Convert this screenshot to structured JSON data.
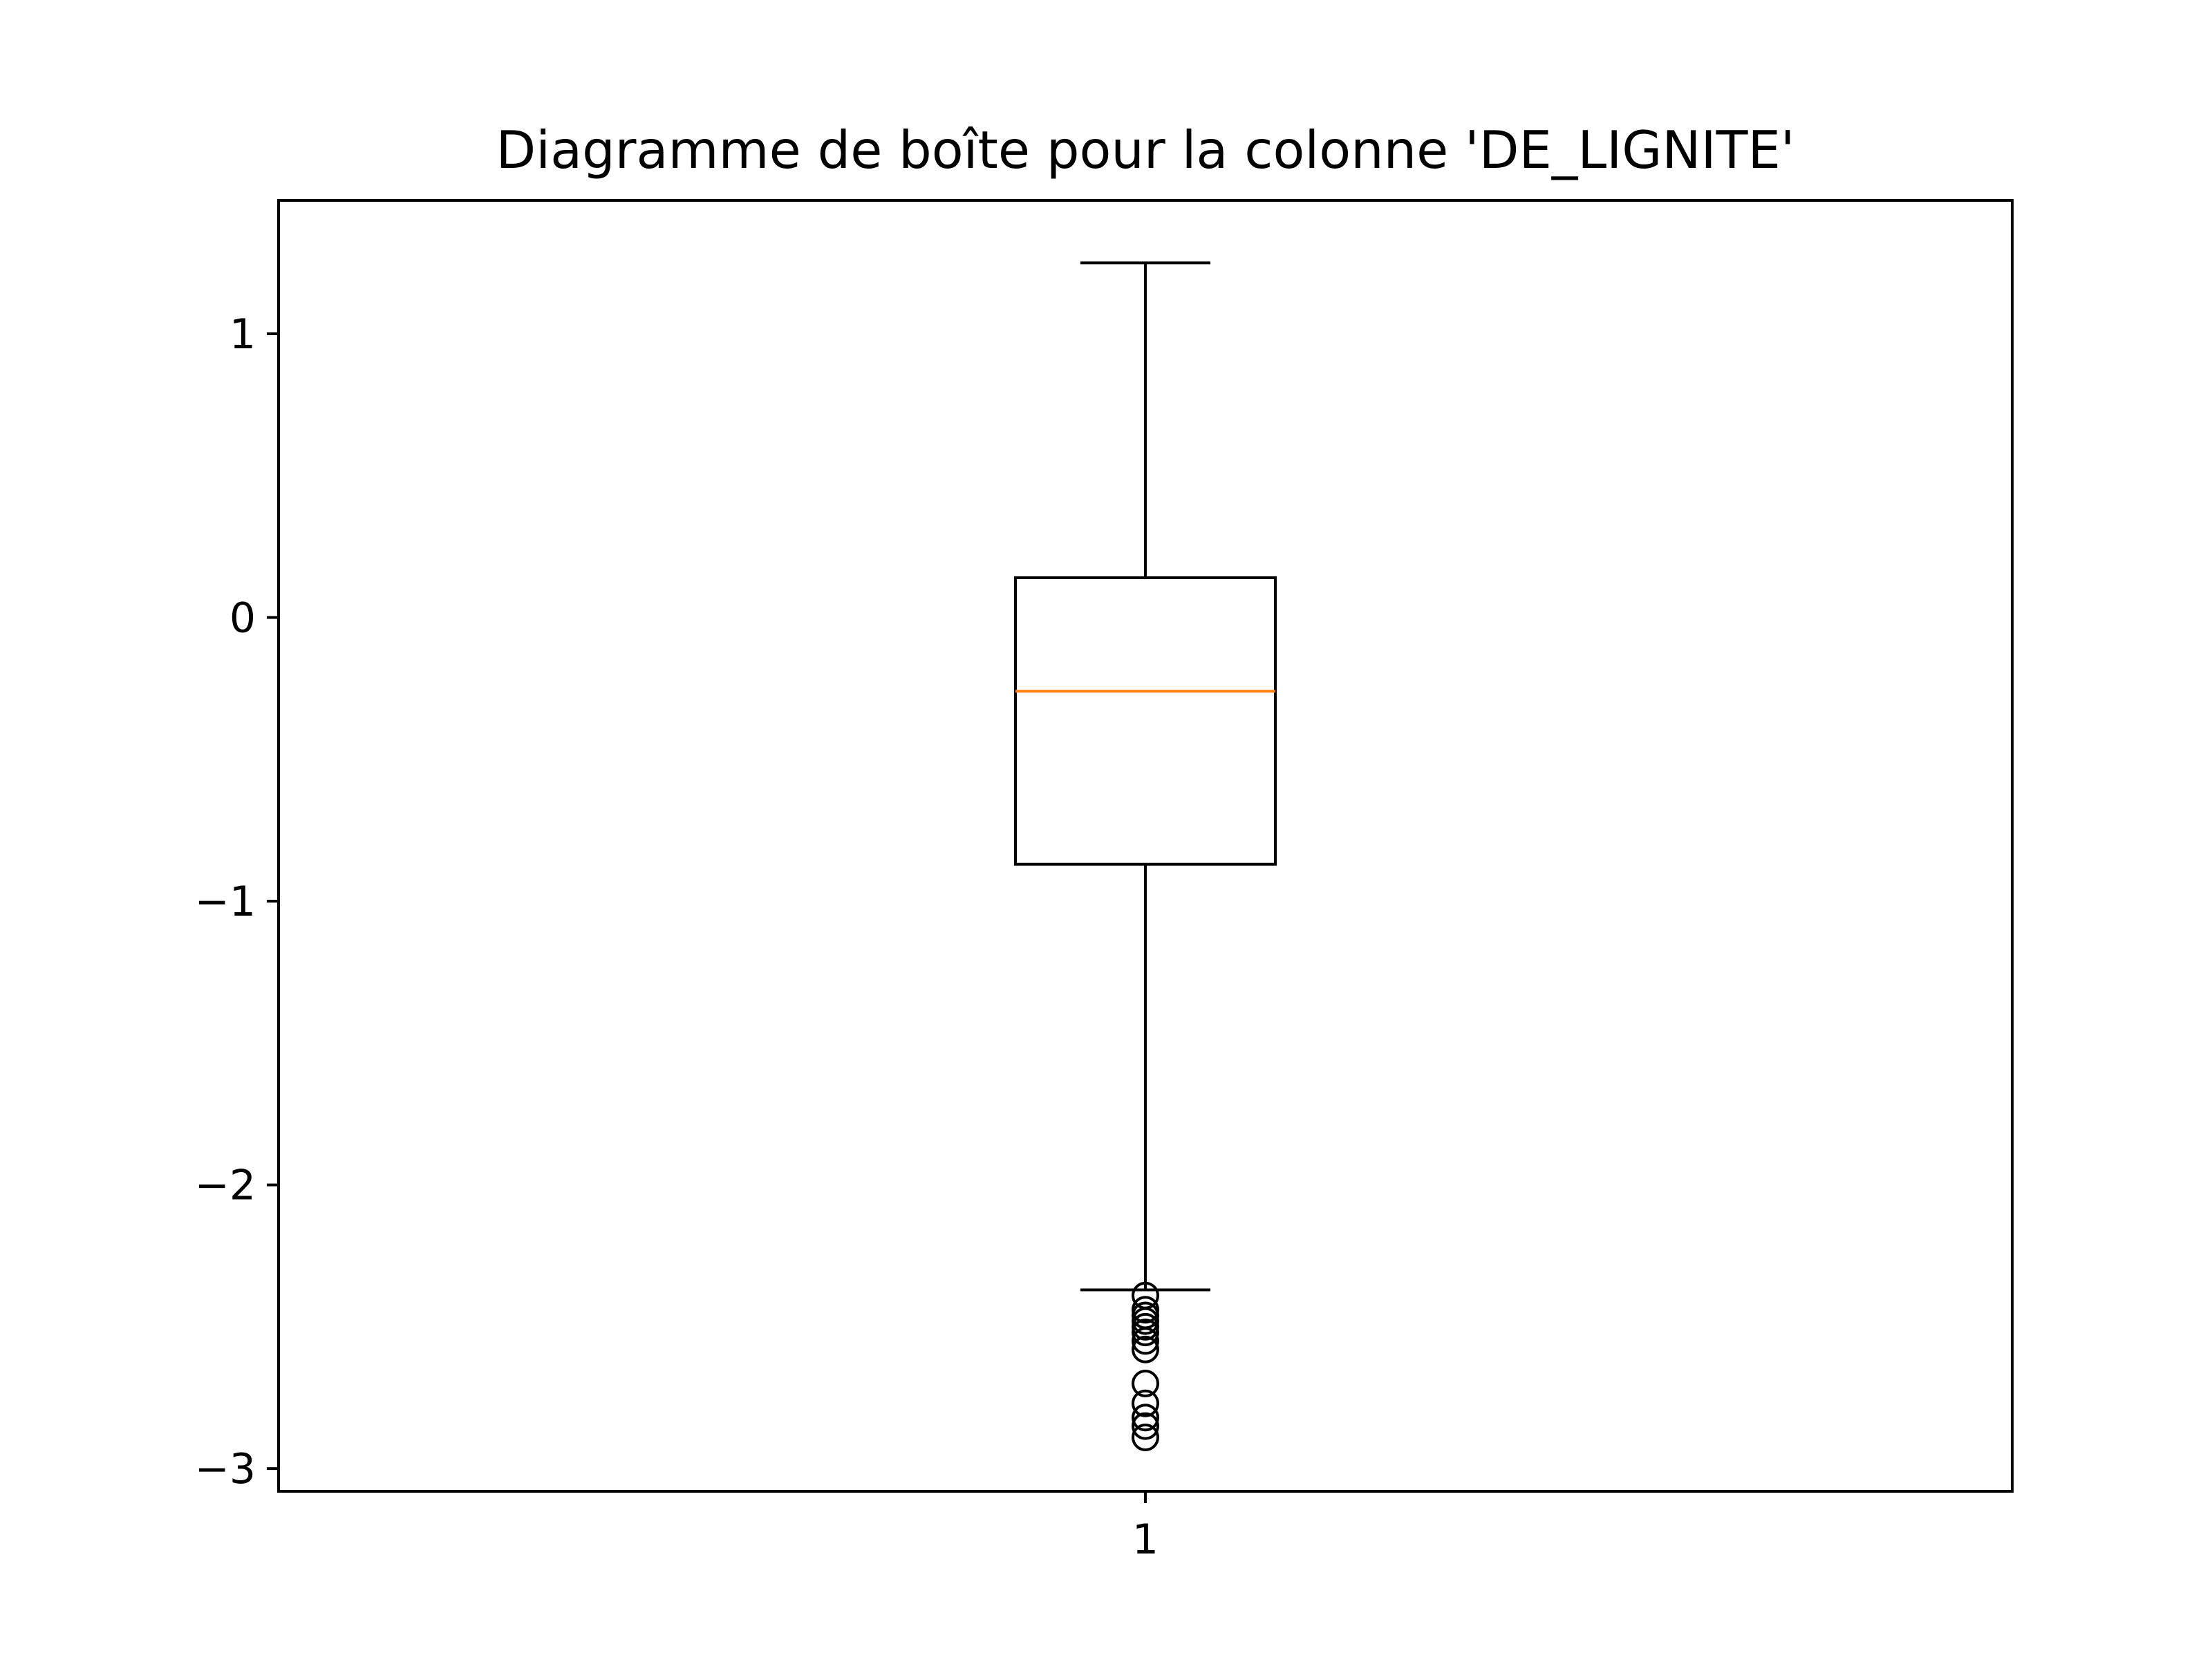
{
  "chart_data": {
    "type": "box",
    "title": "Diagramme de boîte pour la colonne 'DE_LIGNITE'",
    "xlabel": "",
    "ylabel": "",
    "categories": [
      "1"
    ],
    "ylim": [
      -3.08,
      1.47
    ],
    "yticks": [
      {
        "value": 1,
        "label": "1"
      },
      {
        "value": 0,
        "label": "0"
      },
      {
        "value": -1,
        "label": "−1"
      },
      {
        "value": -2,
        "label": "−2"
      },
      {
        "value": -3,
        "label": "−3"
      }
    ],
    "box": {
      "whisker_high": 1.25,
      "q3": 0.14,
      "median": -0.26,
      "q1": -0.87,
      "whisker_low": -2.37
    },
    "outliers": [
      -2.39,
      -2.44,
      -2.46,
      -2.48,
      -2.5,
      -2.52,
      -2.55,
      -2.58,
      -2.7,
      -2.77,
      -2.82,
      -2.85,
      -2.89
    ],
    "grid": false,
    "legend": "none",
    "colors": {
      "median": "#ff7f0e",
      "box": "#000000",
      "axes": "#000000"
    }
  }
}
